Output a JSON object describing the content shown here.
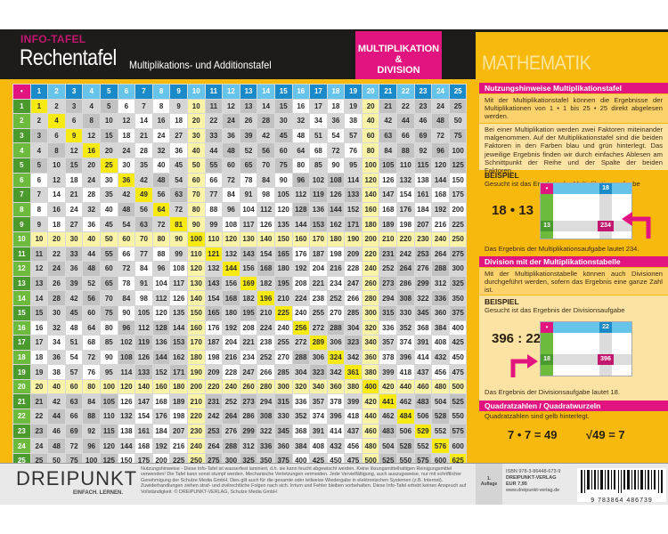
{
  "header": {
    "kicker": "INFO-TAFEL",
    "title": "Rechentafel",
    "subtitle": "Multiplikations- und Additionstafel",
    "badge_line1": "MULTIPLIKATION &",
    "badge_line2": "DIVISION",
    "subject_banner": "MATHEMATIK"
  },
  "table": {
    "corner_symbol": "•",
    "size": 25,
    "squares_highlight": "diagonal",
    "highlight_row_col": 20
  },
  "side": {
    "section1_title": "Nutzungshinweise Multiplikationstafel",
    "section1_p1": "Mit der Multiplikationstafel können die Ergebnisse der Multiplikationen von 1 • 1 bis 25 • 25 direkt abgelesen werden.",
    "section1_p2": "Bei einer Multiplikation werden zwei Faktoren miteinander malgenommen. Auf der Multiplikationstafel sind die beiden Faktoren in den Farben blau und grün hinterlegt. Das jeweilige Ergebnis finden wir durch einfaches Ablesen am Schnittpunkt der Reihe und der Spalte der beiden Faktoren.",
    "example_label": "BEISPIEL",
    "example1_prompt": "Gesucht ist das Ergebnis der Multiplikationsaufgabe",
    "example1_equation": "18 • 13",
    "example1_col": "18",
    "example1_row": "13",
    "example1_result": "234",
    "example1_conclusion": "Das Ergebnis der Multiplikationsaufgabe lautet 234.",
    "section2_title": "Division mit der Multiplikationstabelle",
    "section2_p1": "Mit der Multiplikationstabelle können auch Divisionen durchgeführt werden, sofern das Ergebnis eine ganze Zahl ist.",
    "example2_prompt": "Gesucht ist das Ergebnis der Divisionsaufgabe",
    "example2_equation": "396 : 22",
    "example2_col": "22",
    "example2_row": "18",
    "example2_result": "396",
    "example2_conclusion": "Das Ergebnis der Divisionsaufgabe lautet 18.",
    "section3_title": "Quadratzahlen / Quadratwurzeln",
    "section3_p1": "Quadratzahlen sind gelb hinterlegt.",
    "square_eq": "7 • 7 = 49",
    "root_eq": "√49 = 7",
    "corner_symbol": "•"
  },
  "footer": {
    "logo": "DREIPUNKT",
    "logo_tagline": "EINFACH. LERNEN.",
    "disclaimer": "Nutzungshinweise - Diese Info-Tafel ist wasserfest laminiert, d.h. sie kann feucht abgewischt werden. Keine lösungsmittelhaltigen Reinigungsmittel verwenden! Die Tafel kann sonst stumpf werden. Mechanische Verletzungen vermeiden. Jede Vervielfältigung, auch auszugsweise, nur mit schriftlicher Genehmigung der Schulze Media GmbH. Dies gilt auch für die gesamte oder teilweise Wiedergabe in elektronischen Systemen (z.B. Internet). Zuwiderhandlungen ziehen straf- und zivilrechtliche Folgen nach sich. Irrtum und Fehler bleiben vorbehalten. Diese Info-Tafel erhebt keinen Anspruch auf Vollständigkeit. © DREIPUNKT-VERLAG, Schulze Media GmbH",
    "edition_num": "1.",
    "edition_label": "Auflage",
    "isbn": "ISBN 978-3-86448-673-9",
    "publisher": "DREIPUNKT-VERLAG",
    "price": "EUR 7,95",
    "website": "www.dreipunkt-verlag.de",
    "barcode_digits": "9 783864 486739"
  }
}
